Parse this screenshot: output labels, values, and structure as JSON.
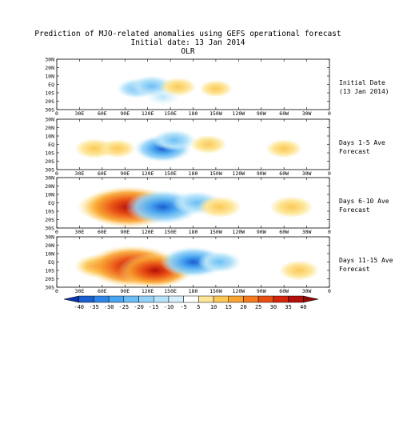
{
  "title": {
    "line1": "Prediction of MJO-related anomalies using GEFS operational forecast",
    "line2": "Initial date: 13 Jan 2014",
    "line3": "OLR"
  },
  "lat_ticks": [
    "30N",
    "20N",
    "10N",
    "EQ",
    "10S",
    "20S",
    "30S"
  ],
  "lon_ticks": [
    "0",
    "30E",
    "60E",
    "90E",
    "120E",
    "150E",
    "180",
    "150W",
    "120W",
    "90W",
    "60W",
    "30W",
    "0"
  ],
  "panels": [
    {
      "label_line1": "Initial Date",
      "label_line2": "(13 Jan 2014)"
    },
    {
      "label_line1": "Days 1-5 Ave",
      "label_line2": "Forecast"
    },
    {
      "label_line1": "Days 6-10 Ave",
      "label_line2": "Forecast"
    },
    {
      "label_line1": "Days 11-15 Ave",
      "label_line2": "Forecast"
    }
  ],
  "colorbar": {
    "ticks": [
      "-40",
      "-35",
      "-30",
      "-25",
      "-20",
      "-15",
      "-10",
      "-5",
      "5",
      "10",
      "15",
      "20",
      "25",
      "30",
      "35",
      "40"
    ],
    "colors": [
      "#0a33a8",
      "#1a5fd0",
      "#2f86e8",
      "#4aa6f0",
      "#6cbef5",
      "#93d3f8",
      "#b6e3f9",
      "#d6f0fb",
      "#ffffff",
      "#fde69a",
      "#fcc857",
      "#f9a431",
      "#f47c1f",
      "#e84f14",
      "#d3260c",
      "#b3100a",
      "#8c0a08"
    ]
  },
  "chart_data": {
    "type": "heatmap",
    "variable": "OLR",
    "x_ticks": [
      "0",
      "30E",
      "60E",
      "90E",
      "120E",
      "150E",
      "180",
      "150W",
      "120W",
      "90W",
      "60W",
      "30W",
      "0"
    ],
    "y_ticks": [
      "30N",
      "20N",
      "10N",
      "EQ",
      "10S",
      "20S",
      "30S"
    ],
    "color_levels": [
      -40,
      -35,
      -30,
      -25,
      -20,
      -15,
      -10,
      -5,
      5,
      10,
      15,
      20,
      25,
      30,
      35,
      40
    ],
    "panels": [
      {
        "name": "Initial Date (13 Jan 2014)",
        "anomalies": [
          {
            "lon": 105,
            "lat": -5,
            "value": -10
          },
          {
            "lon": 125,
            "lat": -2,
            "value": -12
          },
          {
            "lon": 160,
            "lat": -3,
            "value": 8
          },
          {
            "lon": 210,
            "lat": -5,
            "value": 6
          },
          {
            "lon": 140,
            "lat": -15,
            "value": -6
          }
        ]
      },
      {
        "name": "Days 1-5 Ave Forecast",
        "anomalies": [
          {
            "lon": 50,
            "lat": -5,
            "value": 10
          },
          {
            "lon": 80,
            "lat": -5,
            "value": 8
          },
          {
            "lon": 140,
            "lat": -5,
            "value": -20
          },
          {
            "lon": 155,
            "lat": 5,
            "value": -12
          },
          {
            "lon": 200,
            "lat": 0,
            "value": 8
          },
          {
            "lon": 300,
            "lat": -5,
            "value": 8
          }
        ]
      },
      {
        "name": "Days 6-10 Ave Forecast",
        "anomalies": [
          {
            "lon": 70,
            "lat": -5,
            "value": 25
          },
          {
            "lon": 95,
            "lat": -5,
            "value": 40
          },
          {
            "lon": 140,
            "lat": -5,
            "value": -30
          },
          {
            "lon": 185,
            "lat": 0,
            "value": -15
          },
          {
            "lon": 215,
            "lat": -5,
            "value": 12
          },
          {
            "lon": 310,
            "lat": -5,
            "value": 12
          }
        ]
      },
      {
        "name": "Days 11-15 Ave Forecast",
        "anomalies": [
          {
            "lon": 55,
            "lat": -5,
            "value": 15
          },
          {
            "lon": 100,
            "lat": -5,
            "value": 40
          },
          {
            "lon": 130,
            "lat": -10,
            "value": 30
          },
          {
            "lon": 180,
            "lat": 0,
            "value": -25
          },
          {
            "lon": 215,
            "lat": 0,
            "value": -12
          },
          {
            "lon": 320,
            "lat": -10,
            "value": 10
          }
        ]
      }
    ]
  }
}
